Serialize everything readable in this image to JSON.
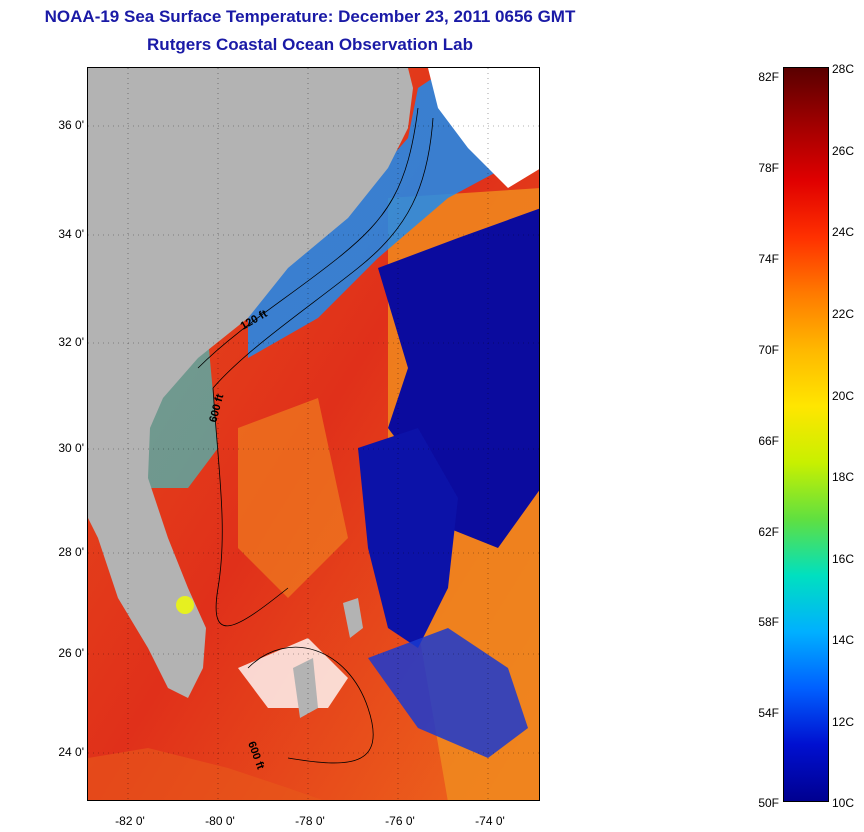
{
  "header": {
    "title": "NOAA-19 Sea Surface Temperature:  December 23, 2011 0656 GMT",
    "subtitle": "Rutgers Coastal Ocean Observation Lab"
  },
  "map": {
    "lat_ticks": [
      "36 0'",
      "34 0'",
      "32 0'",
      "30 0'",
      "28 0'",
      "26 0'",
      "24 0'"
    ],
    "lon_ticks": [
      "-82 0'",
      "-80 0'",
      "-78 0'",
      "-76 0'",
      "-74 0'"
    ],
    "contour_labels": [
      "120 ft",
      "600 ft",
      "600 ft"
    ],
    "colors": {
      "land": "#b3b3b3",
      "cloud": "#ffffff",
      "cold_water": "#0a0a9a",
      "warm_water": "#e03a14"
    }
  },
  "colorbar": {
    "fahrenheit_labels": [
      "82F",
      "78F",
      "74F",
      "70F",
      "66F",
      "62F",
      "58F",
      "54F",
      "50F"
    ],
    "celsius_labels": [
      "28C",
      "26C",
      "24C",
      "22C",
      "20C",
      "18C",
      "16C",
      "14C",
      "12C",
      "10C"
    ],
    "colors_top_to_bottom": [
      "#5a0000",
      "#a00000",
      "#e00000",
      "#ff3000",
      "#ff7a00",
      "#ffb800",
      "#ffe600",
      "#c8f000",
      "#60e040",
      "#00e0c0",
      "#00b0ff",
      "#0060ff",
      "#0010d0",
      "#000090"
    ]
  }
}
